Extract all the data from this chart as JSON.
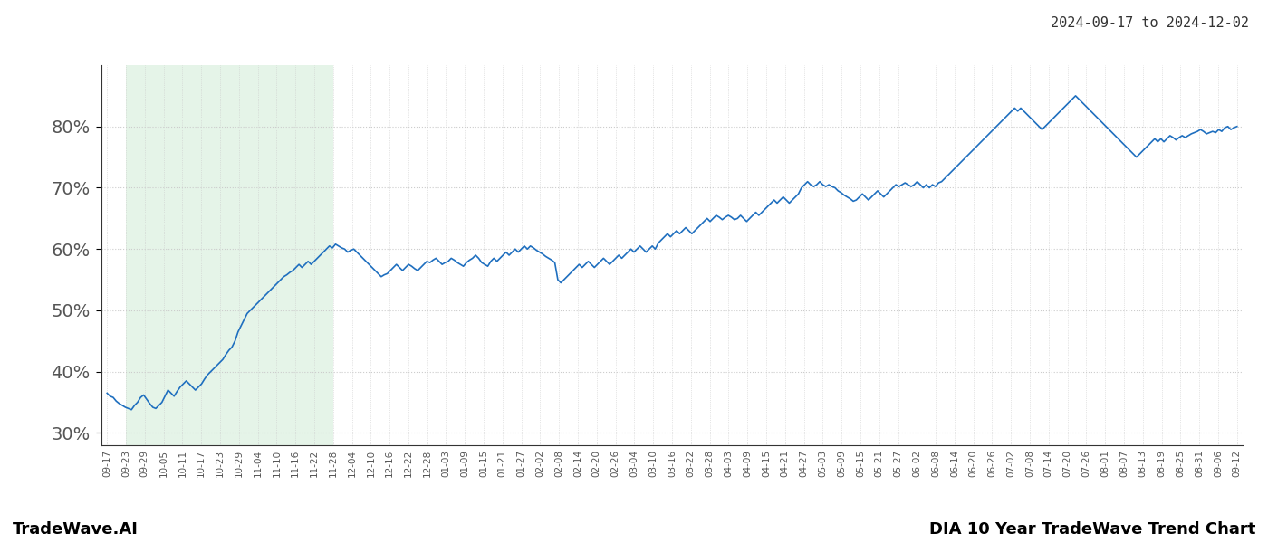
{
  "title_top_right": "2024-09-17 to 2024-12-02",
  "title_bottom_left": "TradeWave.AI",
  "title_bottom_right": "DIA 10 Year TradeWave Trend Chart",
  "line_color": "#1f6fbf",
  "line_width": 1.2,
  "shading_color": "#d4edda",
  "shading_alpha": 0.6,
  "background_color": "#ffffff",
  "grid_color": "#cccccc",
  "grid_linestyle": "dotted",
  "ylim": [
    28,
    90
  ],
  "yticks": [
    30,
    40,
    50,
    60,
    70,
    80
  ],
  "x_labels": [
    "09-17",
    "09-23",
    "09-29",
    "10-05",
    "10-11",
    "10-17",
    "10-23",
    "10-29",
    "11-04",
    "11-10",
    "11-16",
    "11-22",
    "11-28",
    "12-04",
    "12-10",
    "12-16",
    "12-22",
    "12-28",
    "01-03",
    "01-09",
    "01-15",
    "01-21",
    "01-27",
    "02-02",
    "02-08",
    "02-14",
    "02-20",
    "02-26",
    "03-04",
    "03-10",
    "03-16",
    "03-22",
    "03-28",
    "04-03",
    "04-09",
    "04-15",
    "04-21",
    "04-27",
    "05-03",
    "05-09",
    "05-15",
    "05-21",
    "05-27",
    "06-02",
    "06-08",
    "06-14",
    "06-20",
    "06-26",
    "07-02",
    "07-08",
    "07-14",
    "07-20",
    "07-26",
    "08-01",
    "08-07",
    "08-13",
    "08-19",
    "08-25",
    "08-31",
    "09-06",
    "09-12"
  ],
  "shading_start_label": "09-23",
  "shading_end_label": "11-28",
  "y_values": [
    36.5,
    36.0,
    35.8,
    35.2,
    34.8,
    34.5,
    34.2,
    34.0,
    33.8,
    34.5,
    35.0,
    35.8,
    36.2,
    35.5,
    34.8,
    34.2,
    34.0,
    34.5,
    35.0,
    36.0,
    37.0,
    36.5,
    36.0,
    36.8,
    37.5,
    38.0,
    38.5,
    38.0,
    37.5,
    37.0,
    37.5,
    38.0,
    38.8,
    39.5,
    40.0,
    40.5,
    41.0,
    41.5,
    42.0,
    42.8,
    43.5,
    44.0,
    45.0,
    46.5,
    47.5,
    48.5,
    49.5,
    50.0,
    50.5,
    51.0,
    51.5,
    52.0,
    52.5,
    53.0,
    53.5,
    54.0,
    54.5,
    55.0,
    55.5,
    55.8,
    56.2,
    56.5,
    57.0,
    57.5,
    57.0,
    57.5,
    58.0,
    57.5,
    58.0,
    58.5,
    59.0,
    59.5,
    60.0,
    60.5,
    60.2,
    60.8,
    60.5,
    60.2,
    60.0,
    59.5,
    59.8,
    60.0,
    59.5,
    59.0,
    58.5,
    58.0,
    57.5,
    57.0,
    56.5,
    56.0,
    55.5,
    55.8,
    56.0,
    56.5,
    57.0,
    57.5,
    57.0,
    56.5,
    57.0,
    57.5,
    57.2,
    56.8,
    56.5,
    57.0,
    57.5,
    58.0,
    57.8,
    58.2,
    58.5,
    58.0,
    57.5,
    57.8,
    58.0,
    58.5,
    58.2,
    57.8,
    57.5,
    57.2,
    57.8,
    58.2,
    58.5,
    59.0,
    58.5,
    57.8,
    57.5,
    57.2,
    58.0,
    58.5,
    58.0,
    58.5,
    59.0,
    59.5,
    59.0,
    59.5,
    60.0,
    59.5,
    60.0,
    60.5,
    60.0,
    60.5,
    60.2,
    59.8,
    59.5,
    59.2,
    58.8,
    58.5,
    58.2,
    57.8,
    55.0,
    54.5,
    55.0,
    55.5,
    56.0,
    56.5,
    57.0,
    57.5,
    57.0,
    57.5,
    58.0,
    57.5,
    57.0,
    57.5,
    58.0,
    58.5,
    58.0,
    57.5,
    58.0,
    58.5,
    59.0,
    58.5,
    59.0,
    59.5,
    60.0,
    59.5,
    60.0,
    60.5,
    60.0,
    59.5,
    60.0,
    60.5,
    60.0,
    61.0,
    61.5,
    62.0,
    62.5,
    62.0,
    62.5,
    63.0,
    62.5,
    63.0,
    63.5,
    63.0,
    62.5,
    63.0,
    63.5,
    64.0,
    64.5,
    65.0,
    64.5,
    65.0,
    65.5,
    65.2,
    64.8,
    65.2,
    65.5,
    65.2,
    64.8,
    65.0,
    65.5,
    65.0,
    64.5,
    65.0,
    65.5,
    66.0,
    65.5,
    66.0,
    66.5,
    67.0,
    67.5,
    68.0,
    67.5,
    68.0,
    68.5,
    68.0,
    67.5,
    68.0,
    68.5,
    69.0,
    70.0,
    70.5,
    71.0,
    70.5,
    70.2,
    70.5,
    71.0,
    70.5,
    70.2,
    70.5,
    70.2,
    70.0,
    69.5,
    69.2,
    68.8,
    68.5,
    68.2,
    67.8,
    68.0,
    68.5,
    69.0,
    68.5,
    68.0,
    68.5,
    69.0,
    69.5,
    69.0,
    68.5,
    69.0,
    69.5,
    70.0,
    70.5,
    70.2,
    70.5,
    70.8,
    70.5,
    70.2,
    70.5,
    71.0,
    70.5,
    70.0,
    70.5,
    70.0,
    70.5,
    70.2,
    70.8,
    71.0,
    71.5,
    72.0,
    72.5,
    73.0,
    73.5,
    74.0,
    74.5,
    75.0,
    75.5,
    76.0,
    76.5,
    77.0,
    77.5,
    78.0,
    78.5,
    79.0,
    79.5,
    80.0,
    80.5,
    81.0,
    81.5,
    82.0,
    82.5,
    83.0,
    82.5,
    83.0,
    82.5,
    82.0,
    81.5,
    81.0,
    80.5,
    80.0,
    79.5,
    80.0,
    80.5,
    81.0,
    81.5,
    82.0,
    82.5,
    83.0,
    83.5,
    84.0,
    84.5,
    85.0,
    84.5,
    84.0,
    83.5,
    83.0,
    82.5,
    82.0,
    81.5,
    81.0,
    80.5,
    80.0,
    79.5,
    79.0,
    78.5,
    78.0,
    77.5,
    77.0,
    76.5,
    76.0,
    75.5,
    75.0,
    75.5,
    76.0,
    76.5,
    77.0,
    77.5,
    78.0,
    77.5,
    78.0,
    77.5,
    78.0,
    78.5,
    78.2,
    77.8,
    78.2,
    78.5,
    78.2,
    78.5,
    78.8,
    79.0,
    79.2,
    79.5,
    79.2,
    78.8,
    79.0,
    79.2,
    79.0,
    79.5,
    79.2,
    79.8,
    80.0,
    79.5,
    79.8,
    80.0
  ]
}
